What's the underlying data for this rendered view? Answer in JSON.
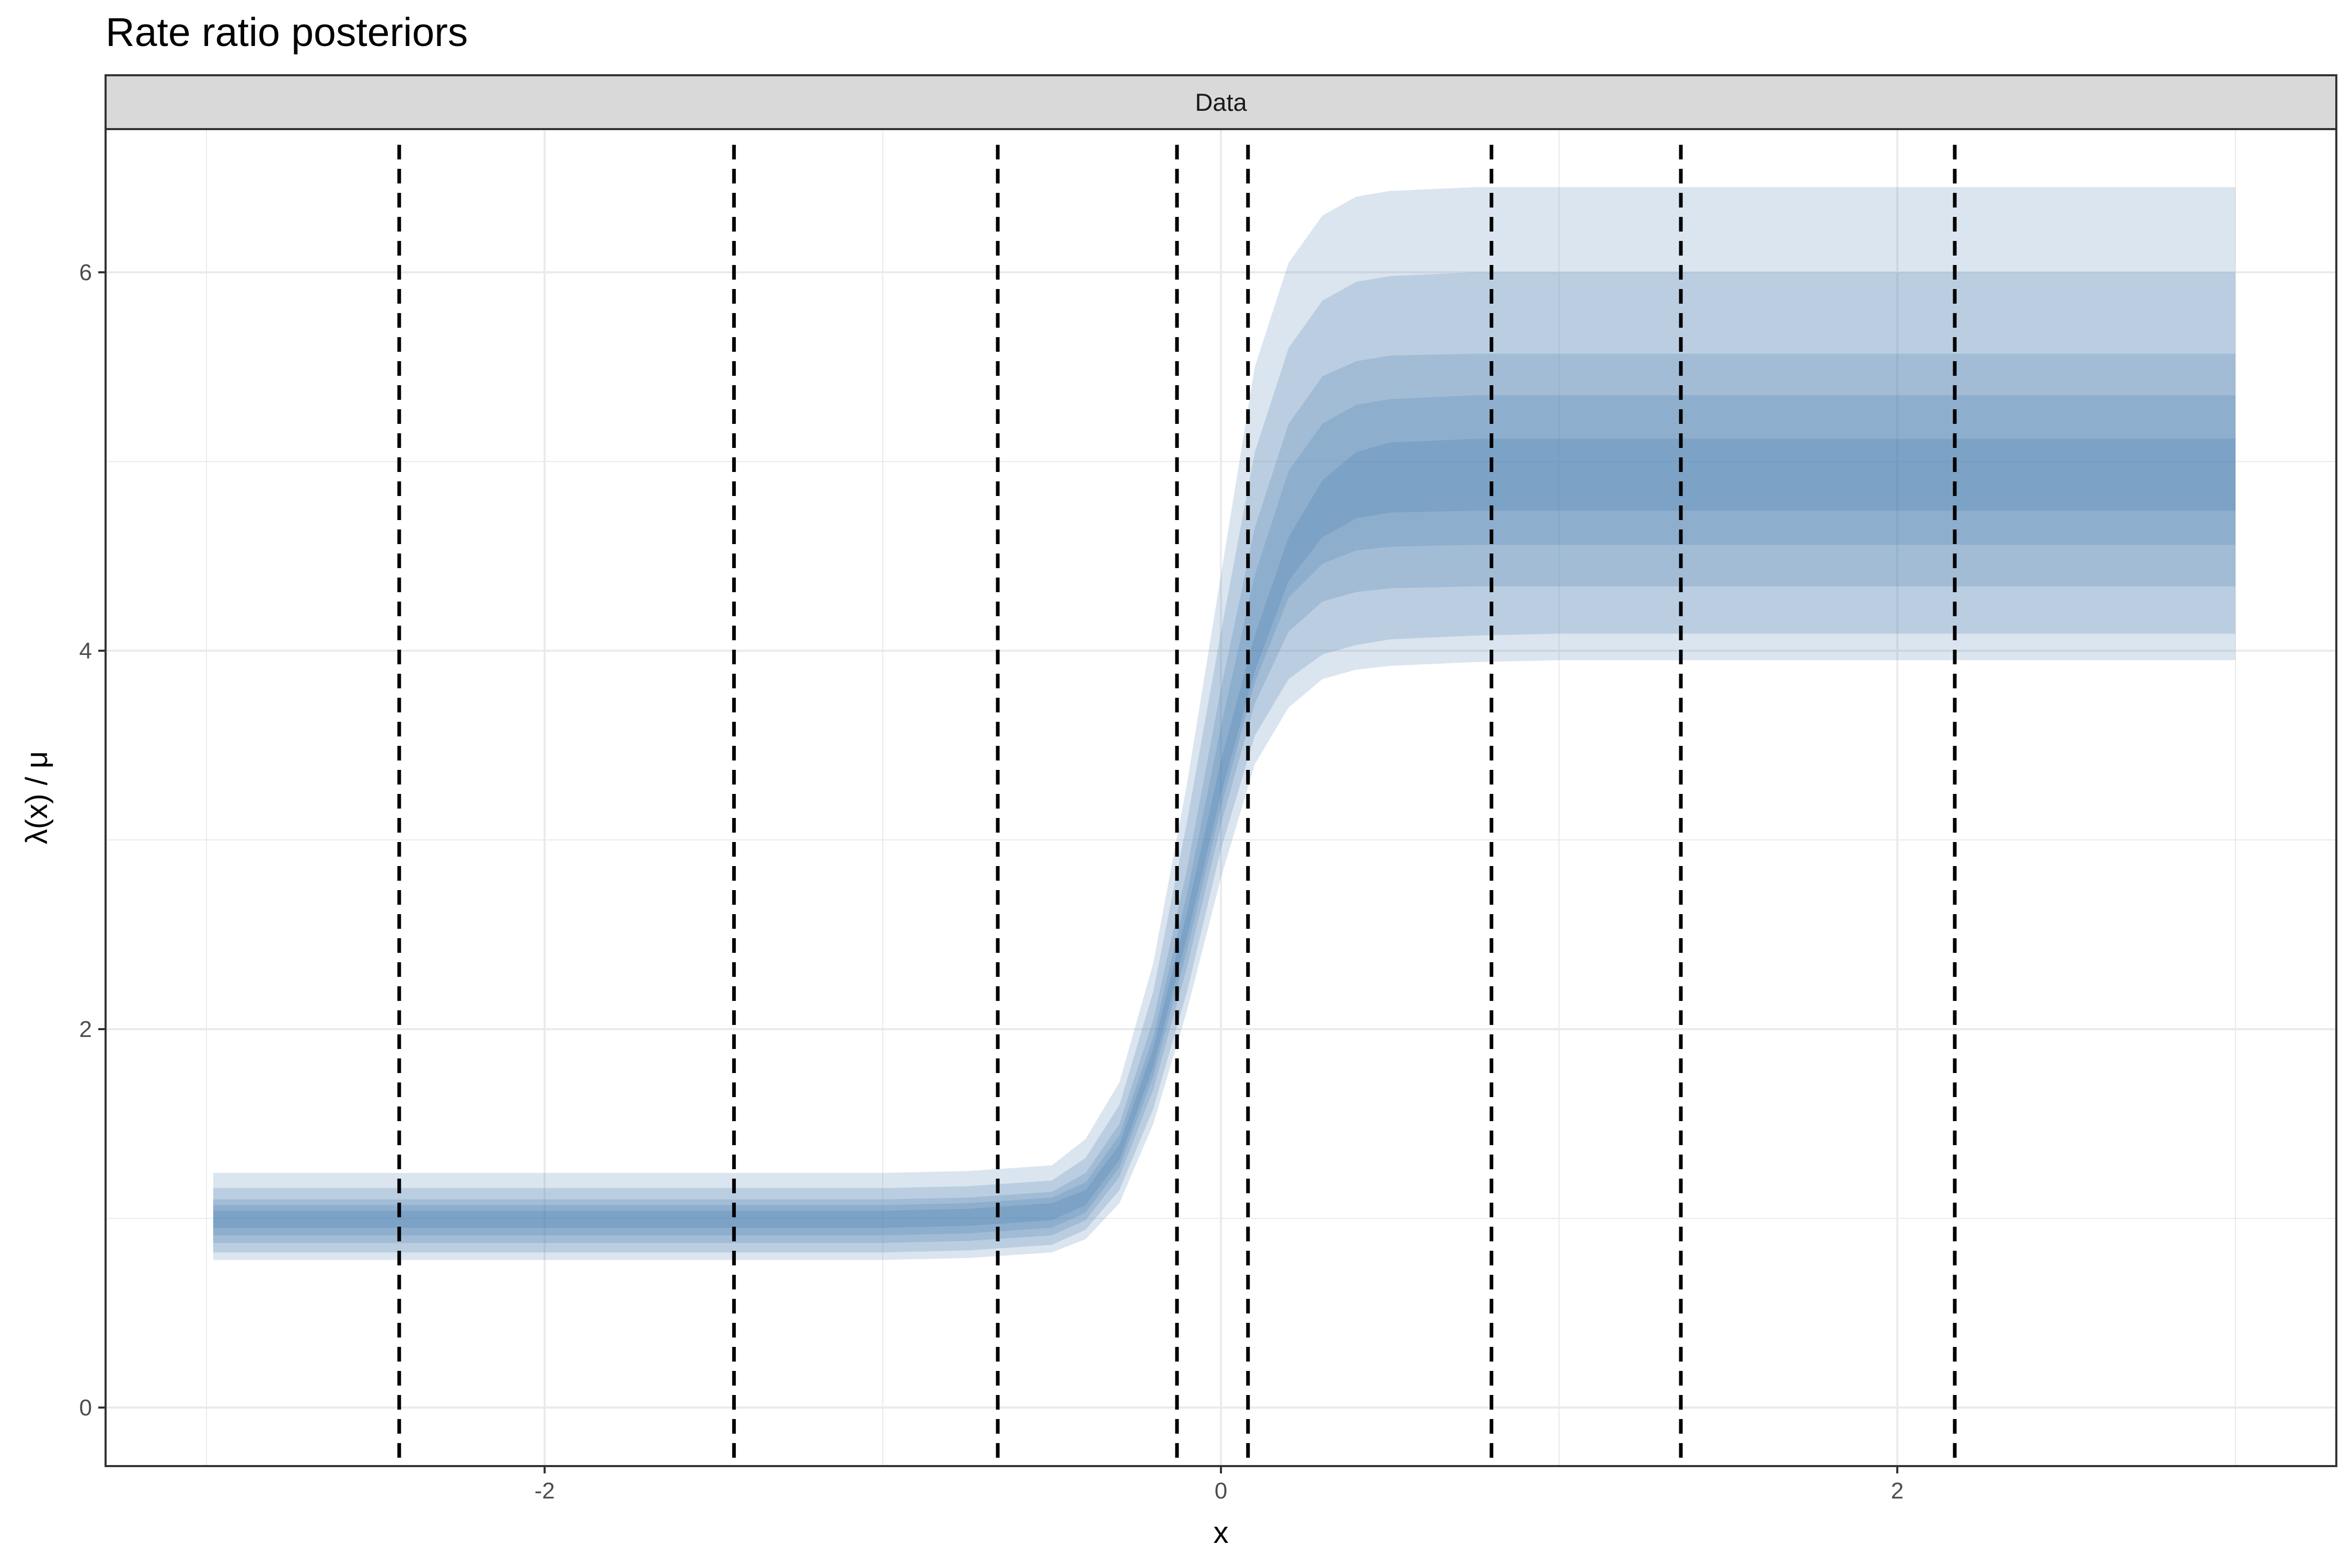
{
  "chart_data": {
    "type": "area",
    "title": "Rate ratio posteriors",
    "facet_label": "Data",
    "xlabel": "x",
    "ylabel": "λ(x) / μ",
    "xlim": [
      -3.0,
      3.0
    ],
    "ylim": [
      0,
      6.5
    ],
    "x_ticks": [
      -2,
      0,
      2
    ],
    "x_tick_labels": [
      "-2",
      "0",
      "2"
    ],
    "y_ticks": [
      0,
      2,
      4,
      6
    ],
    "y_tick_labels": [
      "0",
      "2",
      "4",
      "6"
    ],
    "grid": true,
    "fill_color": "#4a7fb0",
    "curve": {
      "x": [
        -2.98,
        -2.5,
        -2.0,
        -1.5,
        -1.0,
        -0.75,
        -0.5,
        -0.4,
        -0.3,
        -0.2,
        -0.1,
        0.0,
        0.1,
        0.2,
        0.3,
        0.4,
        0.5,
        0.75,
        1.0,
        1.5,
        2.0,
        2.5,
        3.0
      ],
      "median": [
        1.0,
        1.0,
        1.0,
        1.0,
        1.0,
        1.0,
        1.03,
        1.1,
        1.35,
        1.85,
        2.55,
        3.3,
        3.95,
        4.45,
        4.7,
        4.82,
        4.88,
        4.92,
        4.93,
        4.93,
        4.93,
        4.93,
        4.93
      ]
    },
    "bands": [
      {
        "level": "outer",
        "lower": [
          0.78,
          0.78,
          0.78,
          0.78,
          0.78,
          0.79,
          0.82,
          0.89,
          1.08,
          1.5,
          2.1,
          2.8,
          3.4,
          3.7,
          3.85,
          3.9,
          3.92,
          3.94,
          3.95,
          3.95,
          3.95,
          3.95,
          3.95
        ],
        "upper": [
          1.24,
          1.24,
          1.24,
          1.24,
          1.24,
          1.25,
          1.28,
          1.42,
          1.72,
          2.35,
          3.3,
          4.4,
          5.5,
          6.05,
          6.3,
          6.4,
          6.43,
          6.45,
          6.45,
          6.45,
          6.45,
          6.45,
          6.45
        ]
      },
      {
        "level": "90",
        "lower": [
          0.82,
          0.82,
          0.82,
          0.82,
          0.82,
          0.83,
          0.86,
          0.94,
          1.15,
          1.58,
          2.2,
          2.95,
          3.55,
          3.85,
          3.98,
          4.03,
          4.06,
          4.08,
          4.09,
          4.09,
          4.09,
          4.09,
          4.09
        ],
        "upper": [
          1.16,
          1.16,
          1.16,
          1.16,
          1.16,
          1.17,
          1.2,
          1.32,
          1.6,
          2.2,
          3.1,
          4.1,
          5.05,
          5.6,
          5.85,
          5.95,
          5.98,
          6.0,
          6.0,
          6.0,
          6.0,
          6.0,
          6.0
        ]
      },
      {
        "level": "80",
        "lower": [
          0.87,
          0.87,
          0.87,
          0.87,
          0.87,
          0.88,
          0.91,
          0.99,
          1.22,
          1.68,
          2.33,
          3.08,
          3.72,
          4.1,
          4.26,
          4.31,
          4.33,
          4.34,
          4.34,
          4.34,
          4.34,
          4.34,
          4.34
        ],
        "upper": [
          1.1,
          1.1,
          1.1,
          1.1,
          1.1,
          1.11,
          1.14,
          1.24,
          1.5,
          2.05,
          2.85,
          3.8,
          4.65,
          5.2,
          5.45,
          5.53,
          5.56,
          5.57,
          5.57,
          5.57,
          5.57,
          5.57,
          5.57
        ]
      },
      {
        "level": "66",
        "lower": [
          0.91,
          0.91,
          0.91,
          0.91,
          0.91,
          0.92,
          0.95,
          1.03,
          1.27,
          1.75,
          2.42,
          3.17,
          3.83,
          4.28,
          4.46,
          4.53,
          4.55,
          4.56,
          4.56,
          4.56,
          4.56,
          4.56,
          4.56
        ],
        "upper": [
          1.07,
          1.07,
          1.07,
          1.07,
          1.07,
          1.08,
          1.11,
          1.19,
          1.44,
          1.96,
          2.72,
          3.6,
          4.4,
          4.95,
          5.2,
          5.3,
          5.33,
          5.35,
          5.35,
          5.35,
          5.35,
          5.35,
          5.35
        ]
      },
      {
        "level": "50",
        "lower": [
          0.95,
          0.95,
          0.95,
          0.95,
          0.95,
          0.96,
          0.99,
          1.07,
          1.31,
          1.8,
          2.49,
          3.24,
          3.89,
          4.37,
          4.6,
          4.7,
          4.73,
          4.74,
          4.74,
          4.74,
          4.74,
          4.74,
          4.74
        ],
        "upper": [
          1.04,
          1.04,
          1.04,
          1.04,
          1.04,
          1.05,
          1.08,
          1.15,
          1.39,
          1.9,
          2.62,
          3.42,
          4.08,
          4.6,
          4.9,
          5.05,
          5.1,
          5.12,
          5.12,
          5.12,
          5.12,
          5.12,
          5.12
        ]
      }
    ],
    "vlines": [
      -2.43,
      -1.44,
      -0.66,
      -0.13,
      0.08,
      0.8,
      1.36,
      2.17
    ]
  }
}
